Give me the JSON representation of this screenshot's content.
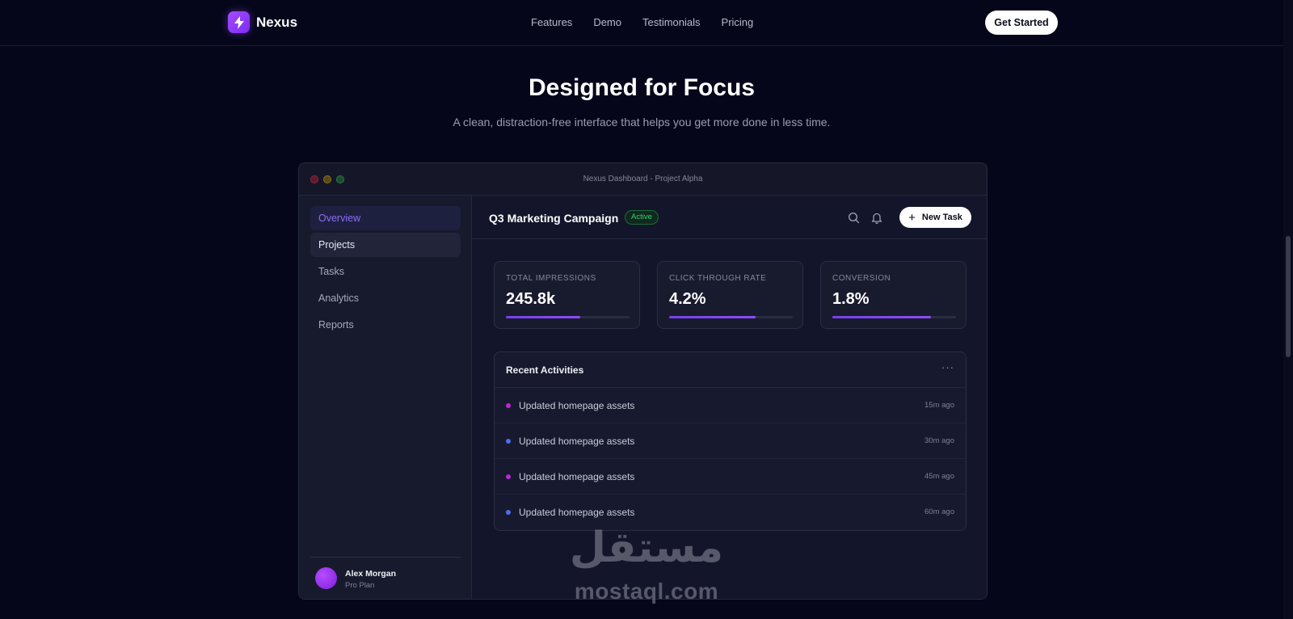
{
  "brand": {
    "name": "Nexus",
    "logo_icon": "lightning-bolt-icon",
    "accent": "#8b3dff"
  },
  "nav": {
    "links": [
      "Features",
      "Demo",
      "Testimonials",
      "Pricing"
    ],
    "cta_label": "Get Started"
  },
  "hero": {
    "title": "Designed for Focus",
    "subtitle": "A clean, distraction-free interface that helps you get more done in less time."
  },
  "window": {
    "title": "Nexus Dashboard - Project Alpha",
    "sidebar": {
      "items": [
        {
          "label": "Overview",
          "state": "active"
        },
        {
          "label": "Projects",
          "state": "hover"
        },
        {
          "label": "Tasks",
          "state": "normal"
        },
        {
          "label": "Analytics",
          "state": "normal"
        },
        {
          "label": "Reports",
          "state": "normal"
        }
      ],
      "user": {
        "name": "Alex Morgan",
        "plan": "Pro Plan"
      }
    },
    "header": {
      "project_title": "Q3 Marketing Campaign",
      "status_badge": "Active",
      "status_color": "#39d06d",
      "icons": [
        "search-icon",
        "bell-icon"
      ],
      "new_task_label": "New Task"
    },
    "stats": [
      {
        "label": "TOTAL IMPRESSIONS",
        "value": "245.8k",
        "progress": 0.6
      },
      {
        "label": "CLICK THROUGH RATE",
        "value": "4.2%",
        "progress": 0.7
      },
      {
        "label": "CONVERSION",
        "value": "1.8%",
        "progress": 0.8
      }
    ],
    "activities": {
      "title": "Recent Activities",
      "more_label": "···",
      "items": [
        {
          "text": "Updated homepage assets",
          "time": "15m ago",
          "dot_color": "#c026d3"
        },
        {
          "text": "Updated homepage assets",
          "time": "30m ago",
          "dot_color": "#4f6df0"
        },
        {
          "text": "Updated homepage assets",
          "time": "45m ago",
          "dot_color": "#c026d3"
        },
        {
          "text": "Updated homepage assets",
          "time": "60m ago",
          "dot_color": "#4f6df0"
        }
      ]
    }
  },
  "watermark": {
    "arabic": "مستقل",
    "latin": "mostaql.com"
  }
}
